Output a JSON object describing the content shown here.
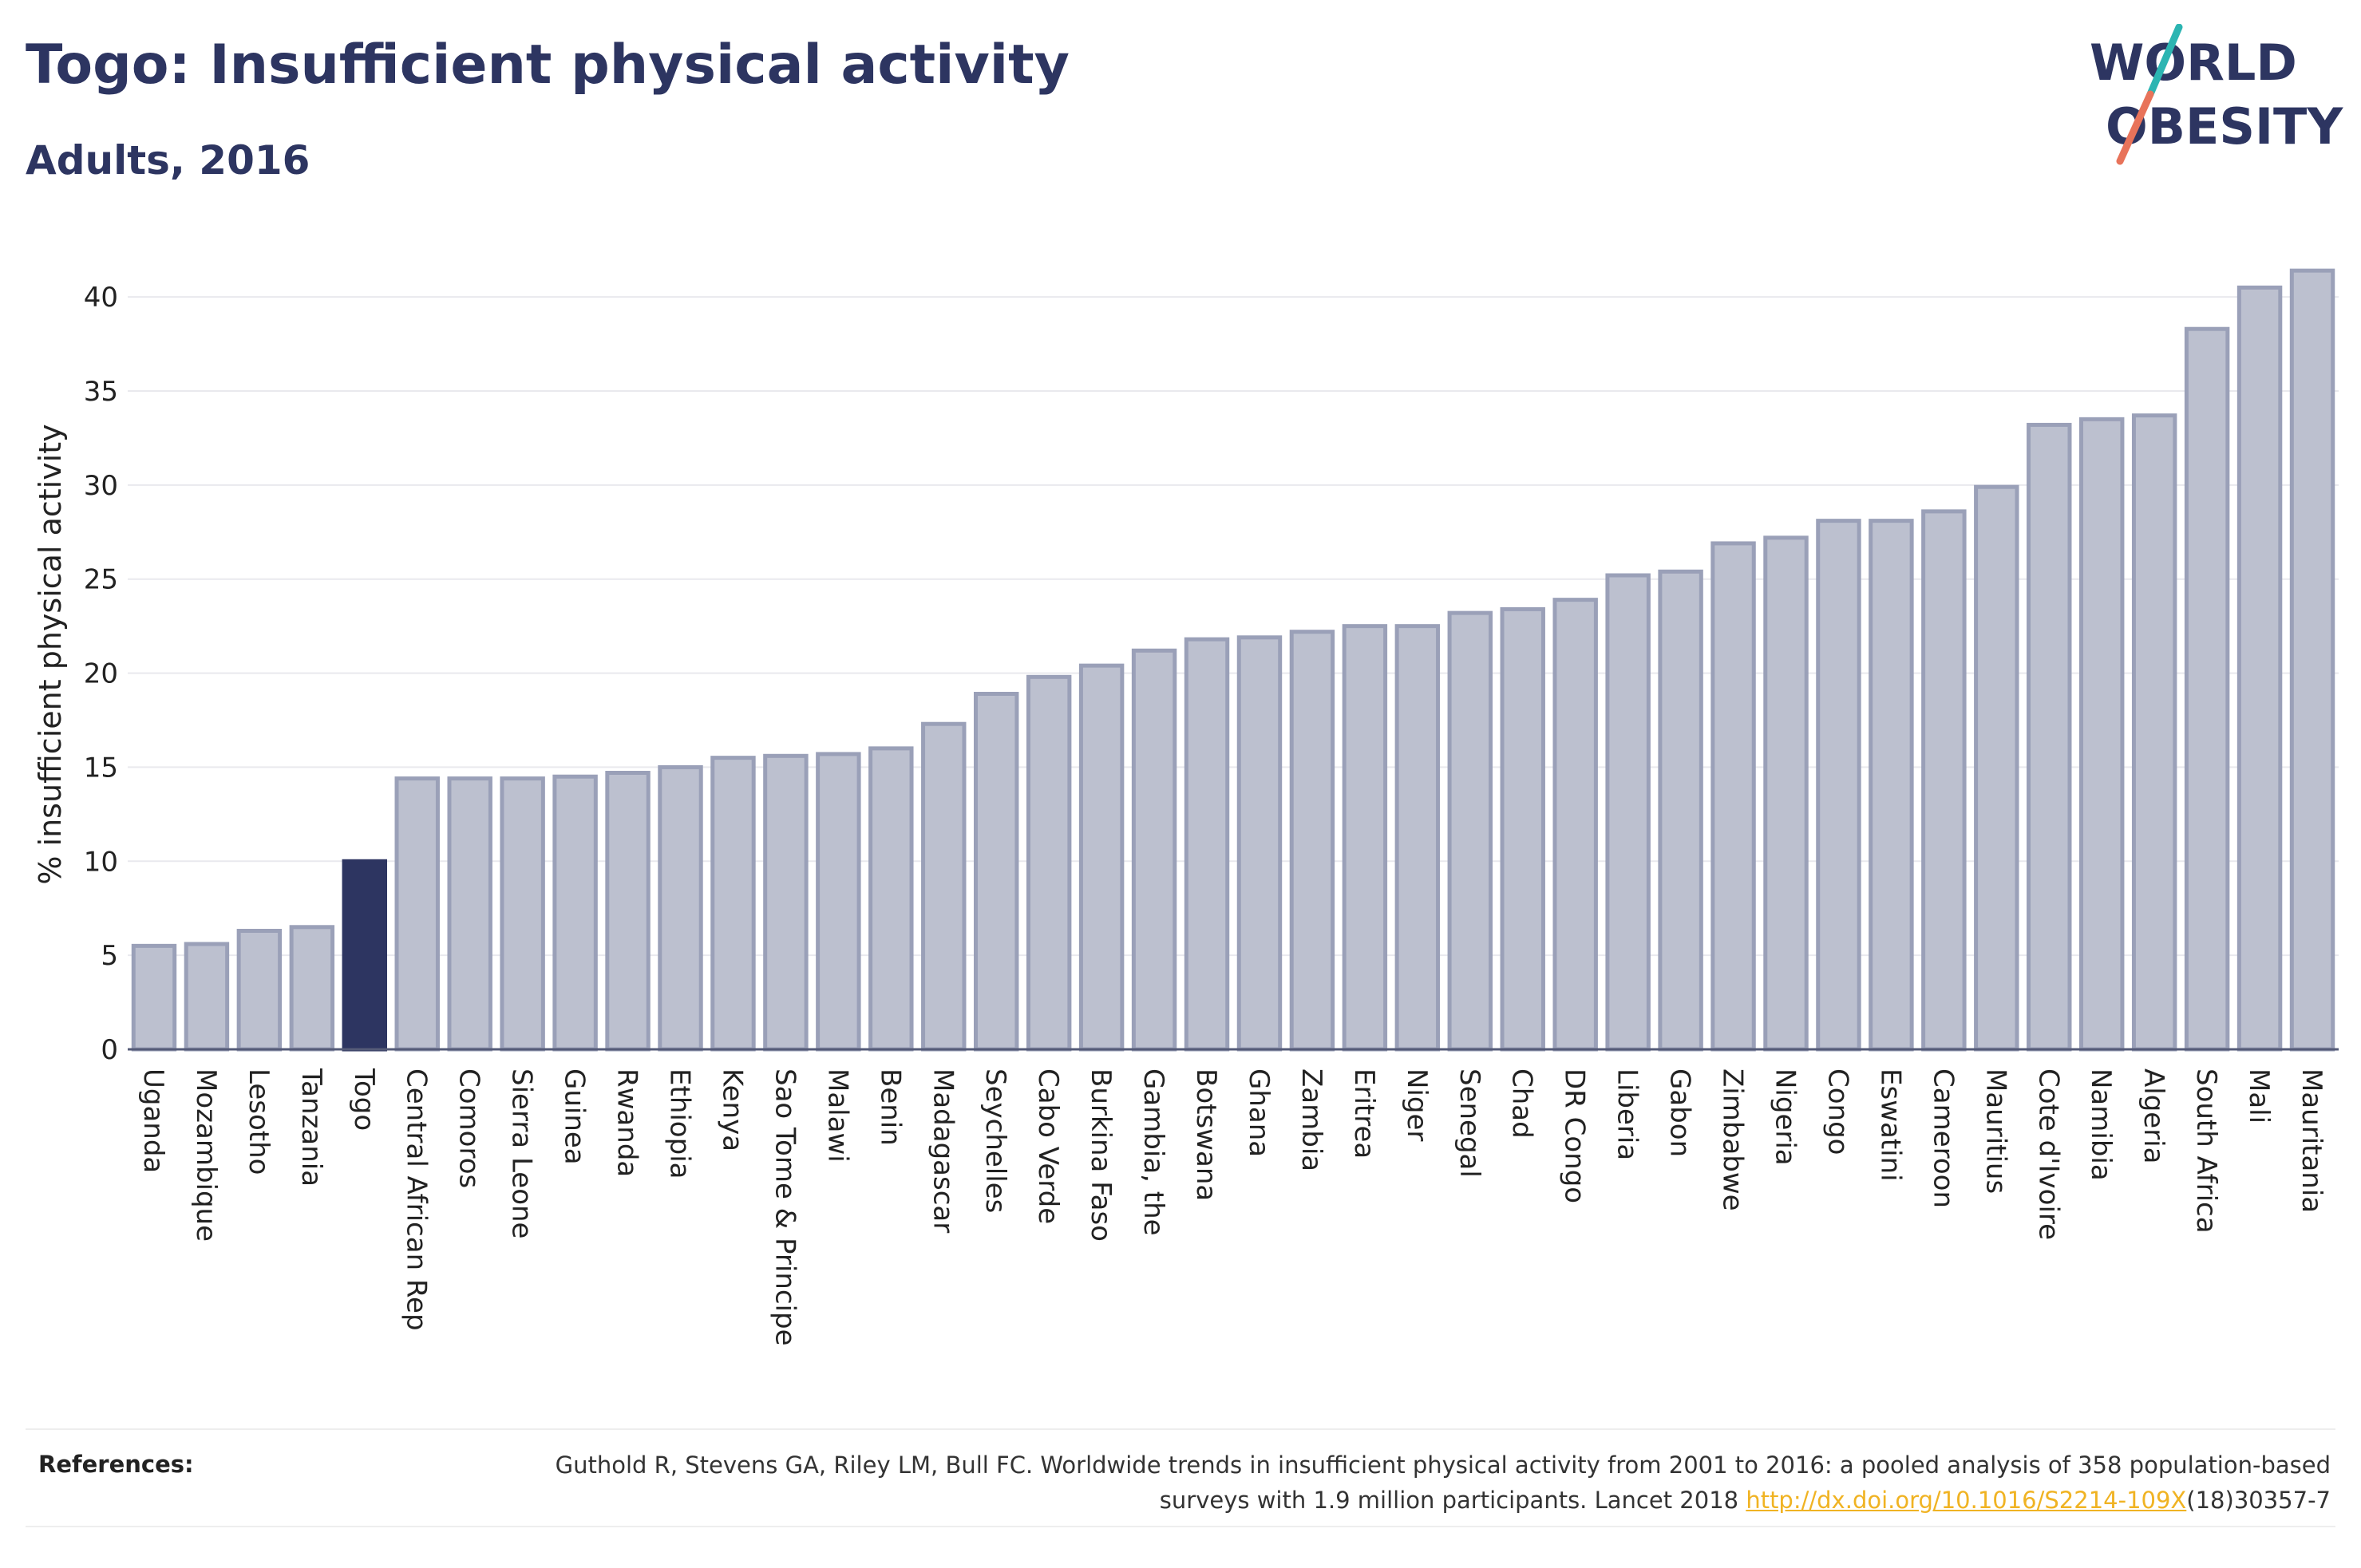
{
  "header": {
    "title": "Togo: Insufficient physical activity",
    "subtitle": "Adults, 2016"
  },
  "logo": {
    "line1": "WORLD",
    "line2": "OBESITY"
  },
  "colors": {
    "highlight": "#2d3561",
    "bar_fill": "#bcc0cf",
    "bar_stroke": "#9aa0b8",
    "logo_slash_teal": "#2cb5b2",
    "logo_slash_red": "#e8735a",
    "link": "#f0b323"
  },
  "chart_data": {
    "type": "bar",
    "ylabel": "% insufficient physical activity",
    "ylim": [
      0,
      42
    ],
    "yticks": [
      0,
      5,
      10,
      15,
      20,
      25,
      30,
      35,
      40
    ],
    "grid": true,
    "highlight": "Togo",
    "categories": [
      "Uganda",
      "Mozambique",
      "Lesotho",
      "Tanzania",
      "Togo",
      "Central African Rep",
      "Comoros",
      "Sierra Leone",
      "Guinea",
      "Rwanda",
      "Ethiopia",
      "Kenya",
      "Sao Tome & Principe",
      "Malawi",
      "Benin",
      "Madagascar",
      "Seychelles",
      "Cabo Verde",
      "Burkina Faso",
      "Gambia, the",
      "Botswana",
      "Ghana",
      "Zambia",
      "Eritrea",
      "Niger",
      "Senegal",
      "Chad",
      "DR Congo",
      "Liberia",
      "Gabon",
      "Zimbabwe",
      "Nigeria",
      "Congo",
      "Eswatini",
      "Cameroon",
      "Mauritius",
      "Cote d'Ivoire",
      "Namibia",
      "Algeria",
      "South Africa",
      "Mali",
      "Mauritania"
    ],
    "values": [
      5.5,
      5.6,
      6.3,
      6.5,
      10.0,
      14.4,
      14.4,
      14.4,
      14.5,
      14.7,
      15.0,
      15.5,
      15.6,
      15.7,
      16.0,
      17.3,
      18.9,
      19.8,
      20.4,
      21.2,
      21.8,
      21.9,
      22.2,
      22.5,
      22.5,
      23.2,
      23.4,
      23.9,
      25.2,
      25.4,
      26.9,
      27.2,
      28.1,
      28.1,
      28.6,
      29.9,
      33.2,
      33.5,
      33.7,
      38.3,
      40.5,
      41.4
    ]
  },
  "references": {
    "label": "References:",
    "text_before": "Guthold R, Stevens GA, Riley LM, Bull FC. Worldwide trends in insufficient physical activity from 2001 to 2016: a pooled analysis of 358 population-based surveys with 1.9 million participants. Lancet 2018 ",
    "link": "http://dx.doi.org/10.1016/S2214-109X",
    "text_after": "(18)30357-7"
  }
}
